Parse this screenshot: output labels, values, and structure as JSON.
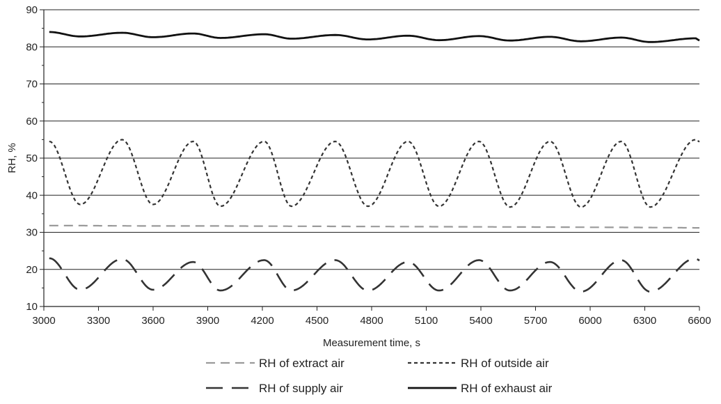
{
  "chart_data": {
    "type": "line",
    "title": "",
    "xlabel": "Measurement time, s",
    "ylabel": "RH, %",
    "xlim": [
      3000,
      6600
    ],
    "ylim": [
      10,
      90
    ],
    "x_ticks": [
      3000,
      3300,
      3600,
      3900,
      4200,
      4500,
      4800,
      5100,
      5400,
      5700,
      6000,
      6300,
      6600
    ],
    "y_ticks": [
      10,
      20,
      30,
      40,
      50,
      60,
      70,
      80,
      90
    ],
    "grid": "horizontal",
    "legend_position": "bottom",
    "x_range": [
      3030,
      6600
    ],
    "series": [
      {
        "name": "RH of extract air",
        "style": "long-dash",
        "color": "#9a9a9a",
        "model": "drift",
        "points": [
          [
            3030,
            31.8
          ],
          [
            3200,
            31.8
          ],
          [
            3600,
            31.7
          ],
          [
            4000,
            31.7
          ],
          [
            4600,
            31.6
          ],
          [
            5200,
            31.5
          ],
          [
            5800,
            31.4
          ],
          [
            6300,
            31.3
          ],
          [
            6600,
            31.2
          ]
        ]
      },
      {
        "name": "RH of outside air",
        "style": "short-dash",
        "color": "#333333",
        "model": "oscillation",
        "peaks": [
          [
            3030,
            54.5
          ],
          [
            3430,
            55.0
          ],
          [
            3820,
            54.5
          ],
          [
            4210,
            54.5
          ],
          [
            4600,
            54.5
          ],
          [
            5000,
            54.5
          ],
          [
            5390,
            54.5
          ],
          [
            5780,
            54.5
          ],
          [
            6170,
            54.5
          ],
          [
            6580,
            55.0
          ]
        ],
        "troughs": [
          [
            3200,
            37.5
          ],
          [
            3600,
            37.5
          ],
          [
            3970,
            37.0
          ],
          [
            4360,
            37.0
          ],
          [
            4780,
            37.0
          ],
          [
            5170,
            37.0
          ],
          [
            5560,
            36.8
          ],
          [
            5950,
            36.8
          ],
          [
            6330,
            36.8
          ]
        ]
      },
      {
        "name": "RH of supply air",
        "style": "dash-dot",
        "color": "#333333",
        "model": "oscillation",
        "peaks": [
          [
            3030,
            23.0
          ],
          [
            3430,
            22.8
          ],
          [
            3820,
            22.0
          ],
          [
            4210,
            22.5
          ],
          [
            4600,
            22.5
          ],
          [
            5000,
            22.0
          ],
          [
            5390,
            22.5
          ],
          [
            5780,
            22.0
          ],
          [
            6170,
            22.5
          ],
          [
            6580,
            23.0
          ]
        ],
        "troughs": [
          [
            3200,
            14.5
          ],
          [
            3600,
            14.5
          ],
          [
            3970,
            14.3
          ],
          [
            4360,
            14.3
          ],
          [
            4780,
            14.3
          ],
          [
            5170,
            14.3
          ],
          [
            5560,
            14.3
          ],
          [
            5950,
            14.0
          ],
          [
            6330,
            14.0
          ]
        ]
      },
      {
        "name": "RH of exhaust air",
        "style": "solid",
        "color": "#111111",
        "model": "oscillation",
        "peaks": [
          [
            3030,
            84.0
          ],
          [
            3430,
            83.8
          ],
          [
            3820,
            83.6
          ],
          [
            4210,
            83.4
          ],
          [
            4600,
            83.2
          ],
          [
            5000,
            83.0
          ],
          [
            5390,
            82.9
          ],
          [
            5780,
            82.7
          ],
          [
            6170,
            82.5
          ],
          [
            6580,
            82.3
          ]
        ],
        "troughs": [
          [
            3200,
            82.8
          ],
          [
            3600,
            82.6
          ],
          [
            3970,
            82.4
          ],
          [
            4360,
            82.2
          ],
          [
            4780,
            82.0
          ],
          [
            5170,
            81.8
          ],
          [
            5560,
            81.7
          ],
          [
            5950,
            81.5
          ],
          [
            6330,
            81.3
          ]
        ]
      }
    ]
  }
}
